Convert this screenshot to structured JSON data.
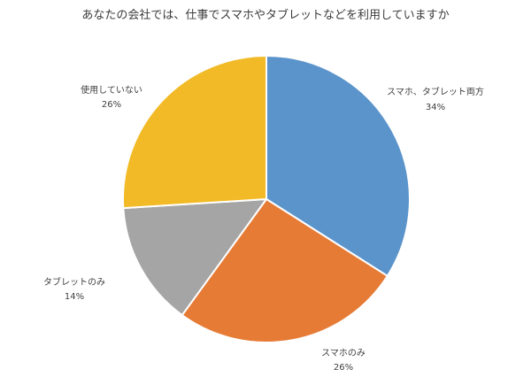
{
  "chart_data": {
    "type": "pie",
    "title": "あなたの会社では、仕事でスマホやタブレットなどを利用していますか",
    "categories": [
      "スマホ、タブレット両方",
      "スマホのみ",
      "タブレットのみ",
      "使用していない"
    ],
    "values": [
      34,
      26,
      14,
      26
    ],
    "data_labels": [
      "34%",
      "26%",
      "14%",
      "26%"
    ],
    "colors": [
      "#5b94cb",
      "#e67b35",
      "#a5a5a5",
      "#f1ba26"
    ],
    "legend": "none"
  }
}
